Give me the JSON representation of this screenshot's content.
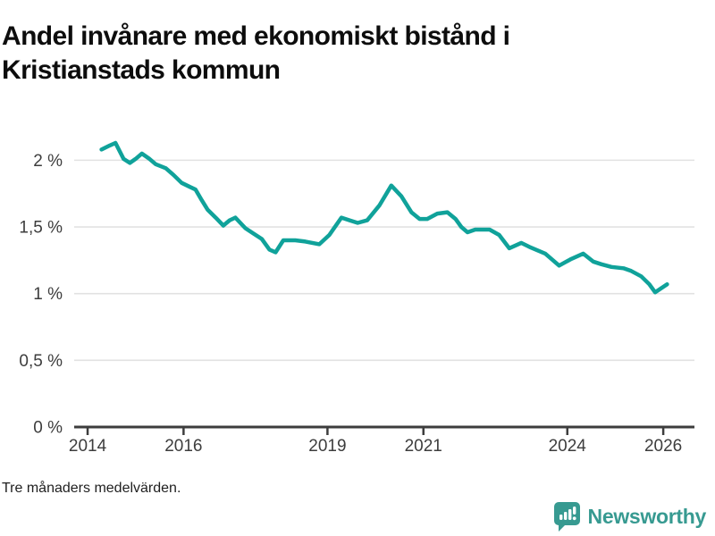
{
  "header": {
    "title": "Andel invånare med ekonomiskt bistånd i Kristianstads kommun"
  },
  "footer": {
    "note": "Tre månaders medelvärden.",
    "brand": "Newsworthy"
  },
  "colors": {
    "line": "#10A29A",
    "axis": "#3D3D3D",
    "grid": "#E2E2E2",
    "brand_teal": "#379A91"
  },
  "chart_data": {
    "type": "line",
    "title": "Andel invånare med ekonomiskt bistånd i Kristianstads kommun",
    "subtitle_note": "Tre månaders medelvärden.",
    "unit": "%",
    "series": [
      {
        "name": "Andel invånare med ekonomiskt bistånd",
        "x": [
          2014.29,
          2014.46,
          2014.58,
          2014.75,
          2014.88,
          2015.0,
          2015.13,
          2015.29,
          2015.42,
          2015.63,
          2015.79,
          2015.96,
          2016.13,
          2016.25,
          2016.38,
          2016.5,
          2016.67,
          2016.83,
          2016.96,
          2017.08,
          2017.29,
          2017.46,
          2017.63,
          2017.79,
          2017.92,
          2018.08,
          2018.33,
          2018.54,
          2018.83,
          2019.04,
          2019.29,
          2019.46,
          2019.63,
          2019.83,
          2020.08,
          2020.33,
          2020.54,
          2020.75,
          2020.92,
          2021.08,
          2021.29,
          2021.5,
          2021.67,
          2021.79,
          2021.92,
          2022.08,
          2022.38,
          2022.58,
          2022.79,
          2023.04,
          2023.21,
          2023.54,
          2023.83,
          2024.08,
          2024.33,
          2024.54,
          2024.71,
          2024.92,
          2025.17,
          2025.33,
          2025.54,
          2025.71,
          2025.83,
          2026.08
        ],
        "values": [
          2.08,
          2.11,
          2.13,
          2.01,
          1.98,
          2.01,
          2.05,
          2.01,
          1.97,
          1.94,
          1.89,
          1.83,
          1.8,
          1.78,
          1.7,
          1.63,
          1.57,
          1.51,
          1.55,
          1.57,
          1.49,
          1.45,
          1.41,
          1.33,
          1.31,
          1.4,
          1.4,
          1.39,
          1.37,
          1.44,
          1.57,
          1.55,
          1.53,
          1.55,
          1.66,
          1.81,
          1.73,
          1.61,
          1.56,
          1.56,
          1.6,
          1.61,
          1.56,
          1.5,
          1.46,
          1.48,
          1.48,
          1.44,
          1.34,
          1.38,
          1.35,
          1.3,
          1.21,
          1.26,
          1.3,
          1.24,
          1.22,
          1.2,
          1.19,
          1.17,
          1.13,
          1.07,
          1.01,
          1.07
        ]
      }
    ],
    "x_ticks": [
      {
        "value": 2014,
        "label": "2014"
      },
      {
        "value": 2016,
        "label": "2016"
      },
      {
        "value": 2019,
        "label": "2019"
      },
      {
        "value": 2021,
        "label": "2021"
      },
      {
        "value": 2024,
        "label": "2024"
      },
      {
        "value": 2026,
        "label": "2026"
      }
    ],
    "y_ticks": [
      {
        "value": 0,
        "label": "0 %"
      },
      {
        "value": 0.5,
        "label": "0,5 %"
      },
      {
        "value": 1,
        "label": "1 %"
      },
      {
        "value": 1.5,
        "label": "1,5 %"
      },
      {
        "value": 2,
        "label": "2 %"
      }
    ],
    "x_range": [
      2013.72,
      2026.65
    ],
    "y_range": [
      0,
      2.2
    ],
    "grid": true,
    "legend": "none",
    "line_color": "#10A29A",
    "axis_color": "#3D3D3D",
    "grid_color": "#E2E2E2"
  }
}
